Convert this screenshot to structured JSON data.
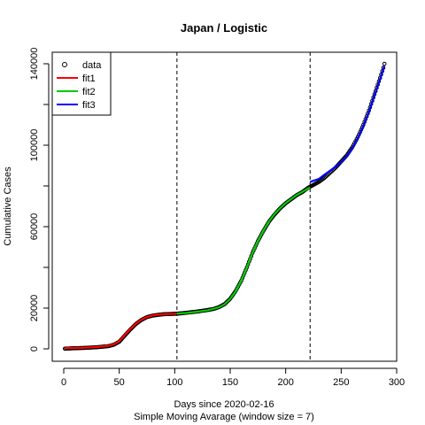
{
  "chart_data": {
    "type": "line",
    "title": "Japan / Logistic",
    "xlabel": "Days since 2020-02-16",
    "subtitle": "Simple Moving Avarage (window size = 7)",
    "ylabel": "Cumulative Cases",
    "xlim": [
      0,
      300
    ],
    "ylim": [
      0,
      140000
    ],
    "x_ticks": [
      0,
      50,
      100,
      150,
      200,
      250,
      300
    ],
    "y_ticks": [
      0,
      20000,
      40000,
      60000,
      80000,
      100000,
      120000,
      140000
    ],
    "y_tick_labels_shown": [
      0,
      20000,
      60000,
      100000,
      140000
    ],
    "vlines": [
      102,
      222
    ],
    "legend": {
      "placement": "top-left",
      "entries": [
        "data",
        "fit1",
        "fit2",
        "fit3"
      ]
    },
    "data": {
      "name": "data",
      "marker": "open-circle",
      "x": [
        1,
        10,
        20,
        30,
        40,
        45,
        50,
        55,
        60,
        65,
        70,
        75,
        80,
        85,
        90,
        95,
        100,
        105,
        110,
        115,
        120,
        125,
        130,
        135,
        140,
        145,
        150,
        155,
        160,
        165,
        170,
        175,
        180,
        185,
        190,
        195,
        200,
        205,
        210,
        215,
        220,
        225,
        230,
        235,
        240,
        245,
        250,
        255,
        260,
        265,
        270,
        275,
        280,
        285,
        288,
        289
      ],
      "y": [
        100,
        300,
        500,
        800,
        1300,
        2000,
        3500,
        6500,
        9500,
        12200,
        14200,
        15600,
        16300,
        16700,
        17000,
        17100,
        17200,
        17400,
        17700,
        18000,
        18300,
        18700,
        19100,
        19600,
        20500,
        22000,
        24600,
        28500,
        33500,
        40000,
        47000,
        53000,
        58000,
        62500,
        66000,
        69000,
        71500,
        73500,
        75500,
        77000,
        79000,
        80500,
        82000,
        84000,
        86500,
        89000,
        92000,
        95000,
        99000,
        104000,
        110000,
        117000,
        125000,
        133000,
        138000,
        140000
      ]
    },
    "series": [
      {
        "name": "fit1",
        "color": "#ff0000",
        "x": [
          1,
          10,
          20,
          30,
          40,
          45,
          50,
          55,
          60,
          65,
          70,
          75,
          80,
          85,
          90,
          95,
          100,
          102
        ],
        "y": [
          400,
          450,
          600,
          900,
          1500,
          2200,
          3800,
          6800,
          9800,
          12400,
          14300,
          15600,
          16400,
          16800,
          17000,
          17100,
          17200,
          17300
        ]
      },
      {
        "name": "fit2",
        "color": "#00cc00",
        "x": [
          102,
          110,
          120,
          130,
          140,
          145,
          150,
          155,
          160,
          165,
          170,
          175,
          180,
          185,
          190,
          195,
          200,
          205,
          210,
          215,
          222
        ],
        "y": [
          17300,
          17600,
          18200,
          19000,
          20400,
          21900,
          24500,
          28400,
          33400,
          40000,
          47000,
          53000,
          58200,
          62600,
          66200,
          69100,
          71600,
          73600,
          75600,
          77100,
          79200
        ]
      },
      {
        "name": "fit3",
        "color": "#0000ff",
        "x": [
          222,
          230,
          235,
          240,
          245,
          250,
          255,
          260,
          265,
          270,
          275,
          280,
          285,
          289
        ],
        "y": [
          82000,
          83500,
          85500,
          87500,
          89500,
          91800,
          94500,
          98500,
          103500,
          109500,
          116500,
          124500,
          132500,
          139000
        ]
      }
    ]
  }
}
